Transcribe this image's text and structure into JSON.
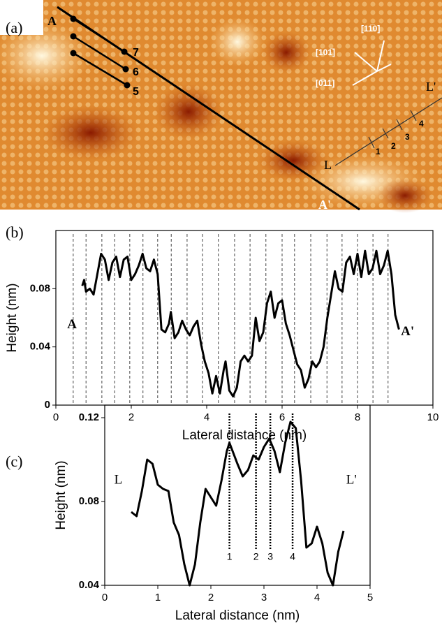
{
  "panel_a": {
    "panel_label": "(a)",
    "line_a_start": "A",
    "line_a_end": "A'",
    "rows": [
      "7",
      "6",
      "5"
    ],
    "line_l_start": "L",
    "line_l_end": "L'",
    "sites": [
      "1",
      "2",
      "3",
      "4"
    ],
    "directions": [
      "[11̅0]",
      "[101̅]",
      "[0̅11]"
    ]
  },
  "chart_data": [
    {
      "type": "line",
      "panel_label": "(b)",
      "x_label": "Lateral distance (nm)",
      "y_label": "Height (nm)",
      "start_label": "A",
      "end_label": "A'",
      "xlim": [
        0,
        10
      ],
      "xticks": [
        0,
        2,
        4,
        6,
        8,
        10
      ],
      "ylim": [
        0,
        0.12
      ],
      "yticks": [
        0,
        0.04,
        0.08
      ],
      "color": "#000000",
      "guides": [
        0.46,
        0.8,
        1.22,
        1.56,
        1.96,
        2.31,
        2.7,
        3.06,
        3.48,
        3.89,
        4.31,
        4.74,
        5.15,
        5.57,
        6.0,
        6.33,
        6.76,
        7.19,
        7.59,
        8.0,
        8.41,
        8.81
      ],
      "x": [
        0.7,
        0.75,
        0.8,
        0.9,
        1.0,
        1.1,
        1.2,
        1.3,
        1.4,
        1.5,
        1.6,
        1.7,
        1.8,
        1.9,
        2.0,
        2.1,
        2.2,
        2.3,
        2.4,
        2.5,
        2.6,
        2.7,
        2.8,
        2.9,
        3.0,
        3.05,
        3.15,
        3.25,
        3.35,
        3.45,
        3.55,
        3.65,
        3.75,
        3.85,
        3.95,
        4.05,
        4.15,
        4.25,
        4.35,
        4.45,
        4.5,
        4.6,
        4.7,
        4.8,
        4.9,
        5.0,
        5.1,
        5.2,
        5.3,
        5.4,
        5.5,
        5.6,
        5.7,
        5.8,
        5.9,
        6.0,
        6.1,
        6.2,
        6.3,
        6.4,
        6.5,
        6.6,
        6.7,
        6.8,
        6.9,
        7.0,
        7.1,
        7.2,
        7.3,
        7.4,
        7.5,
        7.6,
        7.7,
        7.8,
        7.9,
        8.0,
        8.1,
        8.2,
        8.3,
        8.4,
        8.5,
        8.6,
        8.7,
        8.8,
        8.9,
        9.0,
        9.1
      ],
      "values": [
        0.082,
        0.086,
        0.078,
        0.08,
        0.076,
        0.09,
        0.104,
        0.1,
        0.086,
        0.098,
        0.102,
        0.088,
        0.1,
        0.102,
        0.086,
        0.09,
        0.096,
        0.104,
        0.094,
        0.092,
        0.1,
        0.09,
        0.052,
        0.05,
        0.056,
        0.064,
        0.046,
        0.05,
        0.058,
        0.052,
        0.048,
        0.054,
        0.058,
        0.042,
        0.03,
        0.022,
        0.008,
        0.02,
        0.008,
        0.024,
        0.03,
        0.01,
        0.006,
        0.012,
        0.03,
        0.034,
        0.03,
        0.034,
        0.06,
        0.044,
        0.05,
        0.07,
        0.078,
        0.06,
        0.07,
        0.072,
        0.056,
        0.048,
        0.038,
        0.028,
        0.024,
        0.012,
        0.018,
        0.03,
        0.026,
        0.03,
        0.04,
        0.06,
        0.076,
        0.092,
        0.08,
        0.078,
        0.098,
        0.102,
        0.09,
        0.104,
        0.088,
        0.106,
        0.09,
        0.094,
        0.106,
        0.09,
        0.096,
        0.106,
        0.09,
        0.062,
        0.052
      ]
    },
    {
      "type": "line",
      "panel_label": "(c)",
      "x_label": "Lateral distance (nm)",
      "y_label": "Height (nm)",
      "start_label": "L",
      "end_label": "L'",
      "xlim": [
        0,
        5
      ],
      "xticks": [
        0,
        1,
        2,
        3,
        4,
        5
      ],
      "ylim": [
        0.04,
        0.126
      ],
      "yticks": [
        0.04,
        0.08,
        0.12
      ],
      "color": "#000000",
      "markers": [
        {
          "x": 2.35,
          "label": "1"
        },
        {
          "x": 2.85,
          "label": "2"
        },
        {
          "x": 3.12,
          "label": "3"
        },
        {
          "x": 3.54,
          "label": "4"
        }
      ],
      "x": [
        0.5,
        0.6,
        0.7,
        0.8,
        0.9,
        1.0,
        1.1,
        1.2,
        1.3,
        1.4,
        1.5,
        1.6,
        1.7,
        1.8,
        1.9,
        2.0,
        2.1,
        2.2,
        2.3,
        2.35,
        2.5,
        2.6,
        2.7,
        2.8,
        2.9,
        3.0,
        3.1,
        3.2,
        3.3,
        3.4,
        3.5,
        3.6,
        3.7,
        3.8,
        3.9,
        4.0,
        4.1,
        4.2,
        4.3,
        4.4,
        4.5
      ],
      "values": [
        0.075,
        0.073,
        0.085,
        0.1,
        0.098,
        0.088,
        0.086,
        0.085,
        0.07,
        0.064,
        0.05,
        0.04,
        0.05,
        0.07,
        0.086,
        0.082,
        0.078,
        0.09,
        0.104,
        0.108,
        0.098,
        0.092,
        0.095,
        0.102,
        0.1,
        0.106,
        0.11,
        0.104,
        0.094,
        0.108,
        0.118,
        0.115,
        0.09,
        0.058,
        0.06,
        0.068,
        0.06,
        0.046,
        0.04,
        0.056,
        0.066
      ]
    }
  ]
}
